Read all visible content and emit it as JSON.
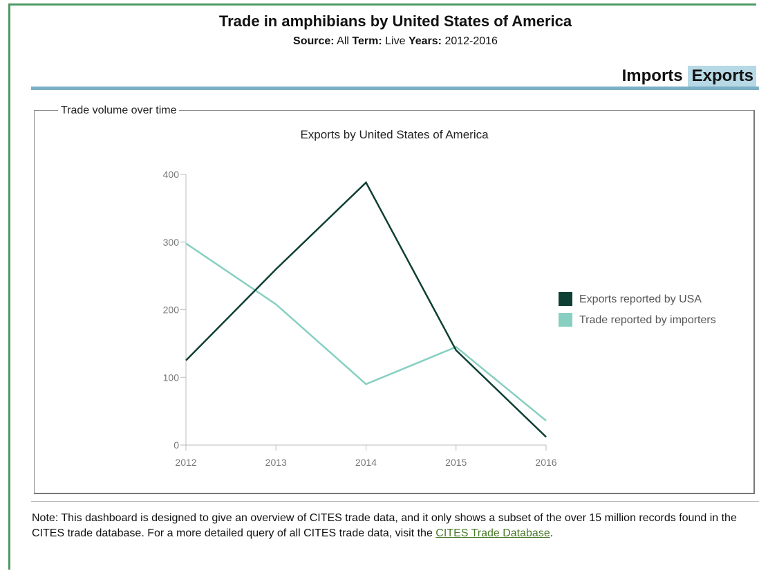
{
  "header": {
    "title": "Trade in amphibians by United States of America",
    "source_label": "Source:",
    "source_value": "All",
    "term_label": "Term:",
    "term_value": "Live",
    "years_label": "Years:",
    "years_value": "2012-2016"
  },
  "tabs": [
    {
      "label": "Imports",
      "active": false
    },
    {
      "label": "Exports",
      "active": true
    }
  ],
  "panel": {
    "legend_title": "Trade volume over time"
  },
  "chart_data": {
    "type": "line",
    "title": "Exports by United States of America",
    "xlabel": "",
    "ylabel": "",
    "x": [
      "2012",
      "2013",
      "2014",
      "2015",
      "2016"
    ],
    "ylim": [
      0,
      400
    ],
    "yticks": [
      "0",
      "100",
      "200",
      "300",
      "400"
    ],
    "grid": false,
    "legend_position": "right",
    "series": [
      {
        "name": "Exports reported by USA",
        "color": "#0e3f34",
        "values": [
          125,
          260,
          388,
          140,
          12
        ]
      },
      {
        "name": "Trade reported by importers",
        "color": "#86cfc1",
        "values": [
          298,
          208,
          90,
          145,
          36
        ]
      }
    ]
  },
  "note": {
    "text": "Note: This dashboard is designed to give an overview of CITES trade data, and it only shows a subset of the over 15 million records found in the CITES trade database. For a more detailed query of all CITES trade data, visit the ",
    "link_text": "CITES Trade Database",
    "end": "."
  }
}
